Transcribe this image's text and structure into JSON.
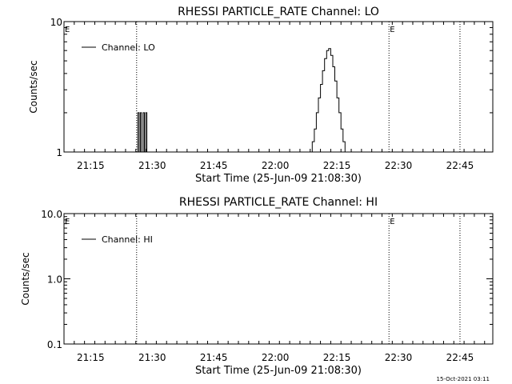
{
  "footer": {
    "timestamp": "15-Oct-2021 03:11"
  },
  "chart_data": [
    {
      "type": "line",
      "title": "RHESSI PARTICLE_RATE Channel: LO",
      "xlabel": "Start Time (25-Jun-09 21:08:30)",
      "ylabel": "Counts/sec",
      "yscale": "log",
      "ylim": [
        1,
        10
      ],
      "xlim_minutes_after_start": [
        0,
        104.5
      ],
      "yticks": [
        1,
        10
      ],
      "ytick_labels": [
        "1",
        "10"
      ],
      "xticks_minutes": [
        6.5,
        21.5,
        36.5,
        51.5,
        66.5,
        81.5,
        96.5
      ],
      "xtick_labels": [
        "21:15",
        "21:30",
        "21:45",
        "22:00",
        "22:15",
        "22:30",
        "22:45"
      ],
      "legend": {
        "placement": "top-left",
        "entries": [
          "Channel: LO"
        ]
      },
      "event_markers": [
        {
          "x": 0,
          "label": "E"
        },
        {
          "x": 17.7,
          "label": ""
        },
        {
          "x": 79.2,
          "label": "E"
        },
        {
          "x": 96.5,
          "label": ""
        }
      ],
      "series": [
        {
          "name": "Channel: LO",
          "points": [
            [
              17.7,
              1.0
            ],
            [
              18.0,
              2.0
            ],
            [
              18.3,
              1.0
            ],
            [
              18.6,
              2.0
            ],
            [
              18.9,
              1.0
            ],
            [
              19.3,
              2.0
            ],
            [
              19.6,
              1.0
            ],
            [
              19.9,
              2.0
            ],
            [
              20.2,
              1.0
            ],
            [
              60.0,
              1.0
            ],
            [
              60.5,
              1.2
            ],
            [
              61.0,
              1.5
            ],
            [
              61.5,
              2.0
            ],
            [
              62.0,
              2.6
            ],
            [
              62.5,
              3.3
            ],
            [
              63.0,
              4.2
            ],
            [
              63.5,
              5.2
            ],
            [
              64.0,
              6.0
            ],
            [
              64.5,
              6.2
            ],
            [
              65.0,
              5.5
            ],
            [
              65.5,
              4.5
            ],
            [
              66.0,
              3.5
            ],
            [
              66.5,
              2.6
            ],
            [
              67.0,
              2.0
            ],
            [
              67.5,
              1.5
            ],
            [
              68.0,
              1.2
            ],
            [
              68.5,
              1.0
            ]
          ]
        }
      ]
    },
    {
      "type": "line",
      "title": "RHESSI PARTICLE_RATE Channel: HI",
      "xlabel": "Start Time (25-Jun-09 21:08:30)",
      "ylabel": "Counts/sec",
      "yscale": "log",
      "ylim": [
        0.1,
        10
      ],
      "xlim_minutes_after_start": [
        0,
        104.5
      ],
      "yticks": [
        0.1,
        1.0,
        10.0
      ],
      "ytick_labels": [
        "0.1",
        "1.0",
        "10.0"
      ],
      "xticks_minutes": [
        6.5,
        21.5,
        36.5,
        51.5,
        66.5,
        81.5,
        96.5
      ],
      "xtick_labels": [
        "21:15",
        "21:30",
        "21:45",
        "22:00",
        "22:15",
        "22:30",
        "22:45"
      ],
      "legend": {
        "placement": "top-left",
        "entries": [
          "Channel: HI"
        ]
      },
      "event_markers": [
        {
          "x": 0,
          "label": "E"
        },
        {
          "x": 17.7,
          "label": ""
        },
        {
          "x": 79.2,
          "label": "E"
        },
        {
          "x": 96.5,
          "label": ""
        }
      ],
      "series": [
        {
          "name": "Channel: HI",
          "points": []
        }
      ]
    }
  ]
}
